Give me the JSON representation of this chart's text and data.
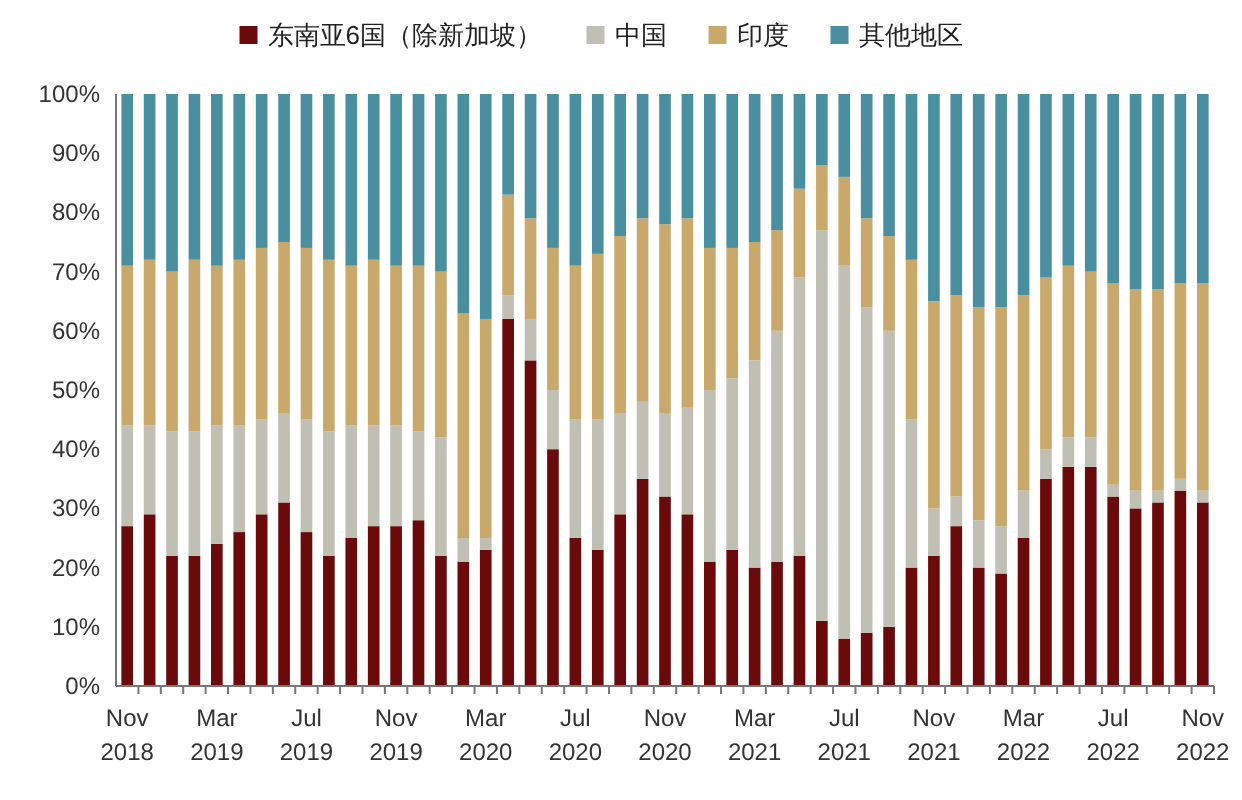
{
  "chart_data": {
    "type": "bar",
    "stacked": true,
    "legend": "top",
    "grid": false,
    "categories": [
      "Nov 2018",
      null,
      null,
      null,
      "Mar 2019",
      null,
      null,
      null,
      "Jul 2019",
      null,
      null,
      null,
      "Nov 2019",
      null,
      null,
      null,
      "Mar 2020",
      null,
      null,
      null,
      "Jul 2020",
      null,
      null,
      null,
      "Nov 2020",
      null,
      null,
      null,
      "Mar 2021",
      null,
      null,
      null,
      "Jul 2021",
      null,
      null,
      null,
      "Nov 2021",
      null,
      null,
      null,
      "Mar 2022",
      null,
      null,
      null,
      "Jul 2022",
      null,
      null,
      null,
      "Nov 2022"
    ],
    "ylim": [
      0,
      100
    ],
    "yticks": [
      {
        "value": 0,
        "label": "0%"
      },
      {
        "value": 10,
        "label": "10%"
      },
      {
        "value": 20,
        "label": "20%"
      },
      {
        "value": 30,
        "label": "30%"
      },
      {
        "value": 40,
        "label": "40%"
      },
      {
        "value": 50,
        "label": "50%"
      },
      {
        "value": 60,
        "label": "60%"
      },
      {
        "value": 70,
        "label": "70%"
      },
      {
        "value": 80,
        "label": "80%"
      },
      {
        "value": 90,
        "label": "90%"
      },
      {
        "value": 100,
        "label": "100%"
      }
    ],
    "series": [
      {
        "name": "东南亚6国（除新加坡）",
        "color": "#6b0a0a",
        "values": [
          27,
          29,
          22,
          22,
          24,
          26,
          29,
          31,
          26,
          22,
          25,
          27,
          27,
          28,
          22,
          21,
          23,
          62,
          55,
          40,
          25,
          23,
          29,
          35,
          32,
          29,
          21,
          23,
          20,
          21,
          22,
          11,
          8,
          9,
          10,
          20,
          22,
          27,
          20,
          19,
          25,
          35,
          37,
          37,
          32,
          30,
          31,
          33,
          31
        ]
      },
      {
        "name": "中国",
        "color": "#bfbfb4",
        "values": [
          17,
          15,
          21,
          21,
          20,
          18,
          16,
          15,
          19,
          21,
          19,
          17,
          17,
          15,
          20,
          4,
          2,
          4,
          7,
          10,
          20,
          22,
          17,
          13,
          14,
          18,
          29,
          29,
          35,
          39,
          47,
          66,
          63,
          55,
          50,
          25,
          8,
          5,
          8,
          8,
          8,
          5,
          5,
          5,
          2,
          3,
          2,
          2,
          2
        ]
      },
      {
        "name": "印度",
        "color": "#c8a96b",
        "values": [
          27,
          28,
          27,
          29,
          27,
          28,
          29,
          29,
          29,
          29,
          27,
          28,
          27,
          28,
          28,
          38,
          37,
          17,
          17,
          24,
          26,
          28,
          30,
          31,
          32,
          32,
          24,
          22,
          20,
          17,
          15,
          11,
          15,
          15,
          16,
          27,
          35,
          34,
          36,
          37,
          33,
          29,
          29,
          28,
          34,
          34,
          34,
          33,
          35
        ]
      },
      {
        "name": "其他地区",
        "color": "#4a8fa0",
        "values": [
          29,
          28,
          30,
          28,
          29,
          28,
          26,
          25,
          26,
          28,
          29,
          28,
          29,
          29,
          30,
          37,
          38,
          17,
          21,
          26,
          29,
          27,
          24,
          21,
          22,
          21,
          26,
          26,
          25,
          23,
          16,
          12,
          14,
          21,
          24,
          28,
          35,
          34,
          36,
          36,
          34,
          31,
          29,
          30,
          32,
          33,
          33,
          32,
          32
        ]
      }
    ]
  }
}
